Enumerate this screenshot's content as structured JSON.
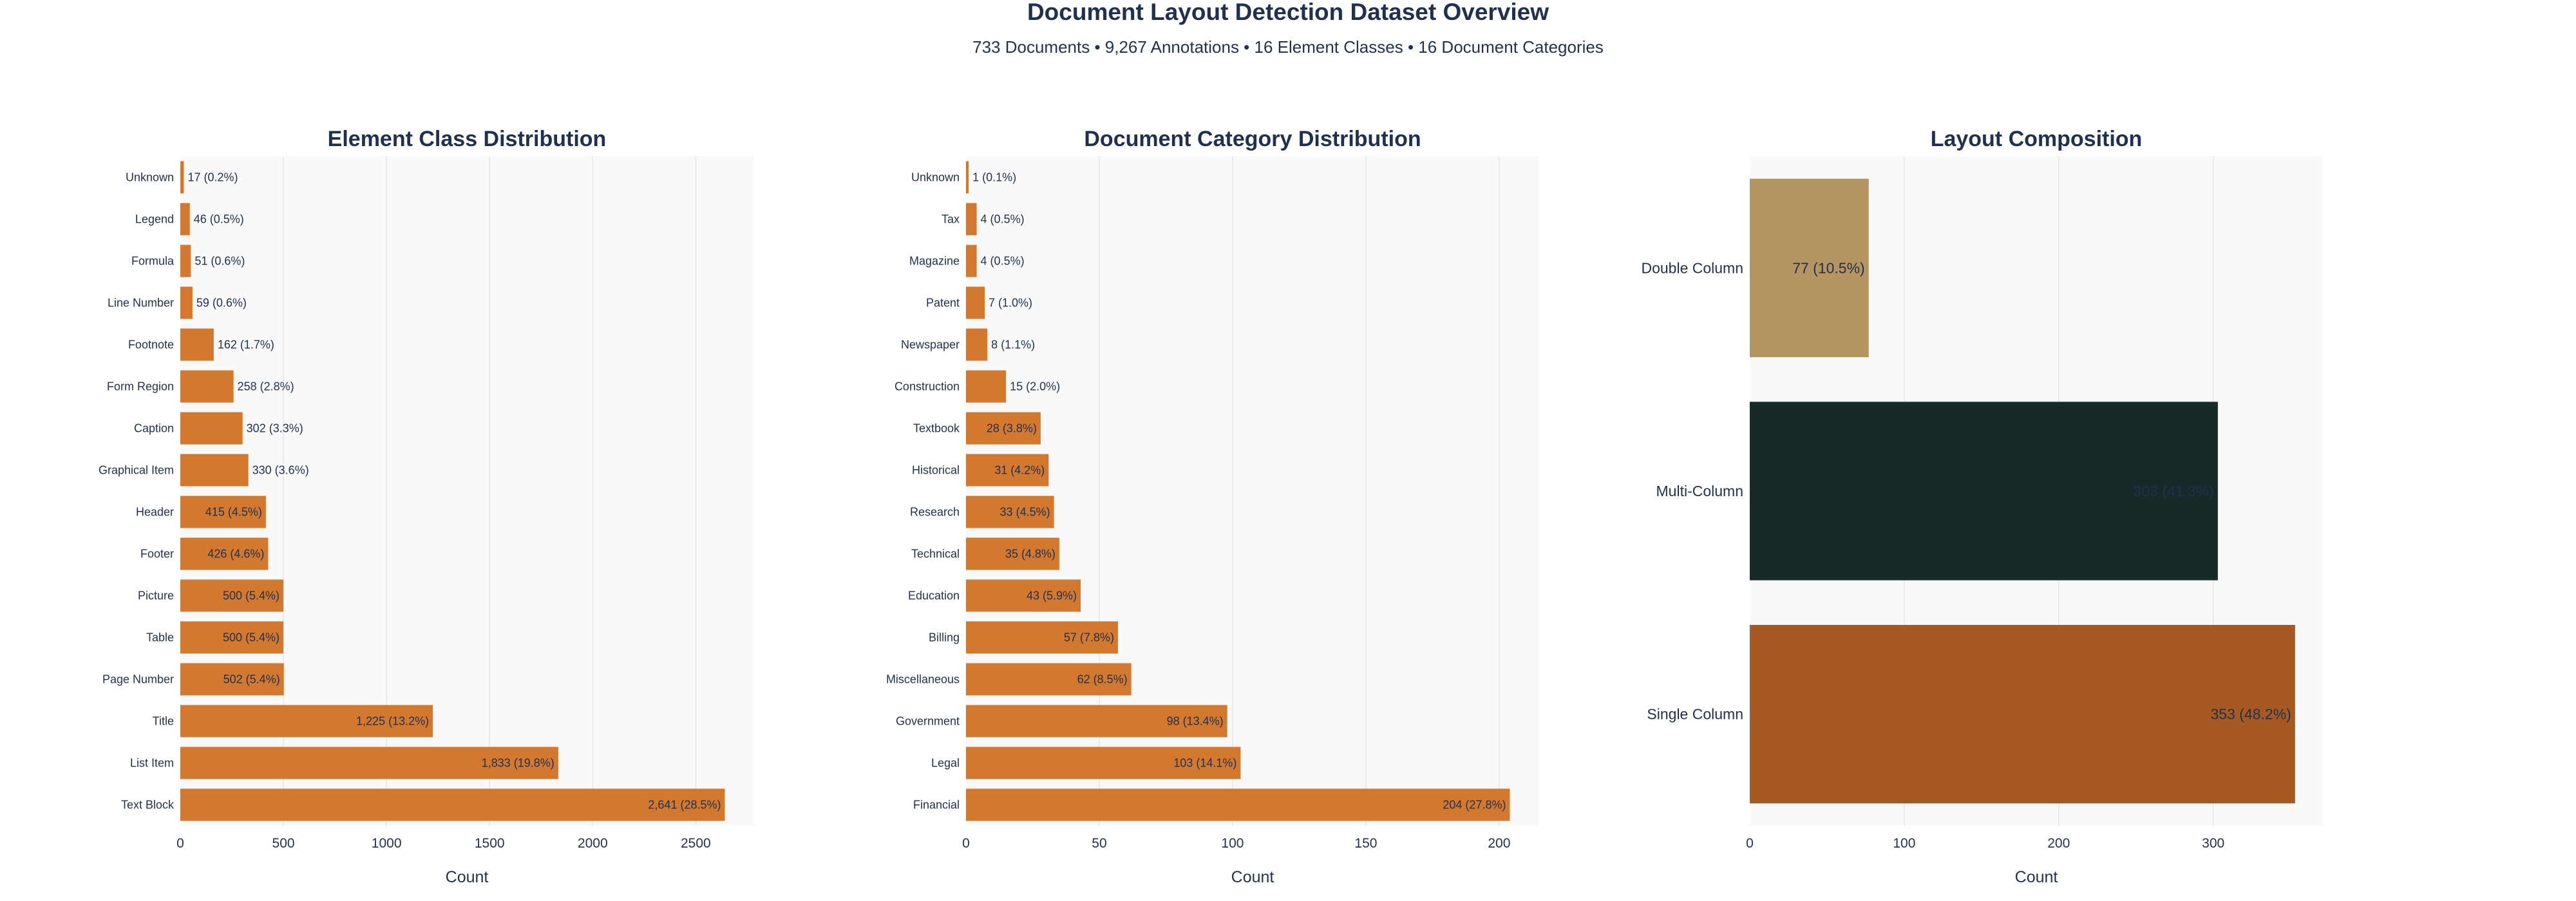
{
  "header": {
    "title": "Document Layout Detection Dataset Overview",
    "subtitle": "733 Documents  •  9,267 Annotations  •  16 Element Classes  •  16 Document Categories"
  },
  "chart_data": [
    {
      "id": "element-class",
      "type": "bar",
      "orientation": "horizontal",
      "title": "Element Class Distribution",
      "xlabel": "Count",
      "ylabel": "",
      "xlim": [
        0,
        2780
      ],
      "xticks": [
        0,
        500,
        1000,
        1500,
        2000,
        2500
      ],
      "grid": true,
      "color": "#d2782f",
      "categories": [
        "Unknown",
        "Legend",
        "Formula",
        "Line Number",
        "Footnote",
        "Form Region",
        "Caption",
        "Graphical Item",
        "Header",
        "Footer",
        "Picture",
        "Table",
        "Page Number",
        "Title",
        "List Item",
        "Text Block"
      ],
      "values": [
        17,
        46,
        51,
        59,
        162,
        258,
        302,
        330,
        415,
        426,
        500,
        500,
        502,
        1225,
        1833,
        2641
      ],
      "labels": [
        "17 (0.2%)",
        "46 (0.5%)",
        "51 (0.6%)",
        "59 (0.6%)",
        "162 (1.7%)",
        "258 (2.8%)",
        "302 (3.3%)",
        "330 (3.6%)",
        "415 (4.5%)",
        "426 (4.6%)",
        "500 (5.4%)",
        "500 (5.4%)",
        "502 (5.4%)",
        "1,225 (13.2%)",
        "1,833 (19.8%)",
        "2,641 (28.5%)"
      ]
    },
    {
      "id": "document-category",
      "type": "bar",
      "orientation": "horizontal",
      "title": "Document Category Distribution",
      "xlabel": "Count",
      "ylabel": "",
      "xlim": [
        0,
        215
      ],
      "xticks": [
        0,
        50,
        100,
        150,
        200
      ],
      "grid": true,
      "color": "#d2782f",
      "categories": [
        "Unknown",
        "Tax",
        "Magazine",
        "Patent",
        "Newspaper",
        "Construction",
        "Textbook",
        "Historical",
        "Research",
        "Technical",
        "Education",
        "Billing",
        "Miscellaneous",
        "Government",
        "Legal",
        "Financial"
      ],
      "values": [
        1,
        4,
        4,
        7,
        8,
        15,
        28,
        31,
        33,
        35,
        43,
        57,
        62,
        98,
        103,
        204
      ],
      "labels": [
        "1 (0.1%)",
        "4 (0.5%)",
        "4 (0.5%)",
        "7 (1.0%)",
        "8 (1.1%)",
        "15 (2.0%)",
        "28 (3.8%)",
        "31 (4.2%)",
        "33 (4.5%)",
        "35 (4.8%)",
        "43 (5.9%)",
        "57 (7.8%)",
        "62 (8.5%)",
        "98 (13.4%)",
        "103 (14.1%)",
        "204 (27.8%)"
      ]
    },
    {
      "id": "layout-composition",
      "type": "bar",
      "orientation": "horizontal",
      "title": "Layout Composition",
      "xlabel": "Count",
      "ylabel": "",
      "xlim": [
        0,
        371
      ],
      "xticks": [
        0,
        100,
        200,
        300
      ],
      "grid": true,
      "categories": [
        "Double Column",
        "Multi-Column",
        "Single Column"
      ],
      "values": [
        77,
        303,
        353
      ],
      "labels": [
        "77 (10.5%)",
        "303 (41.3%)",
        "353 (48.2%)"
      ],
      "colors": [
        "#b59561",
        "#182a28",
        "#a65a22"
      ],
      "label_colors": [
        "#1f3050",
        "#ffffff",
        "#ffffff"
      ]
    }
  ]
}
